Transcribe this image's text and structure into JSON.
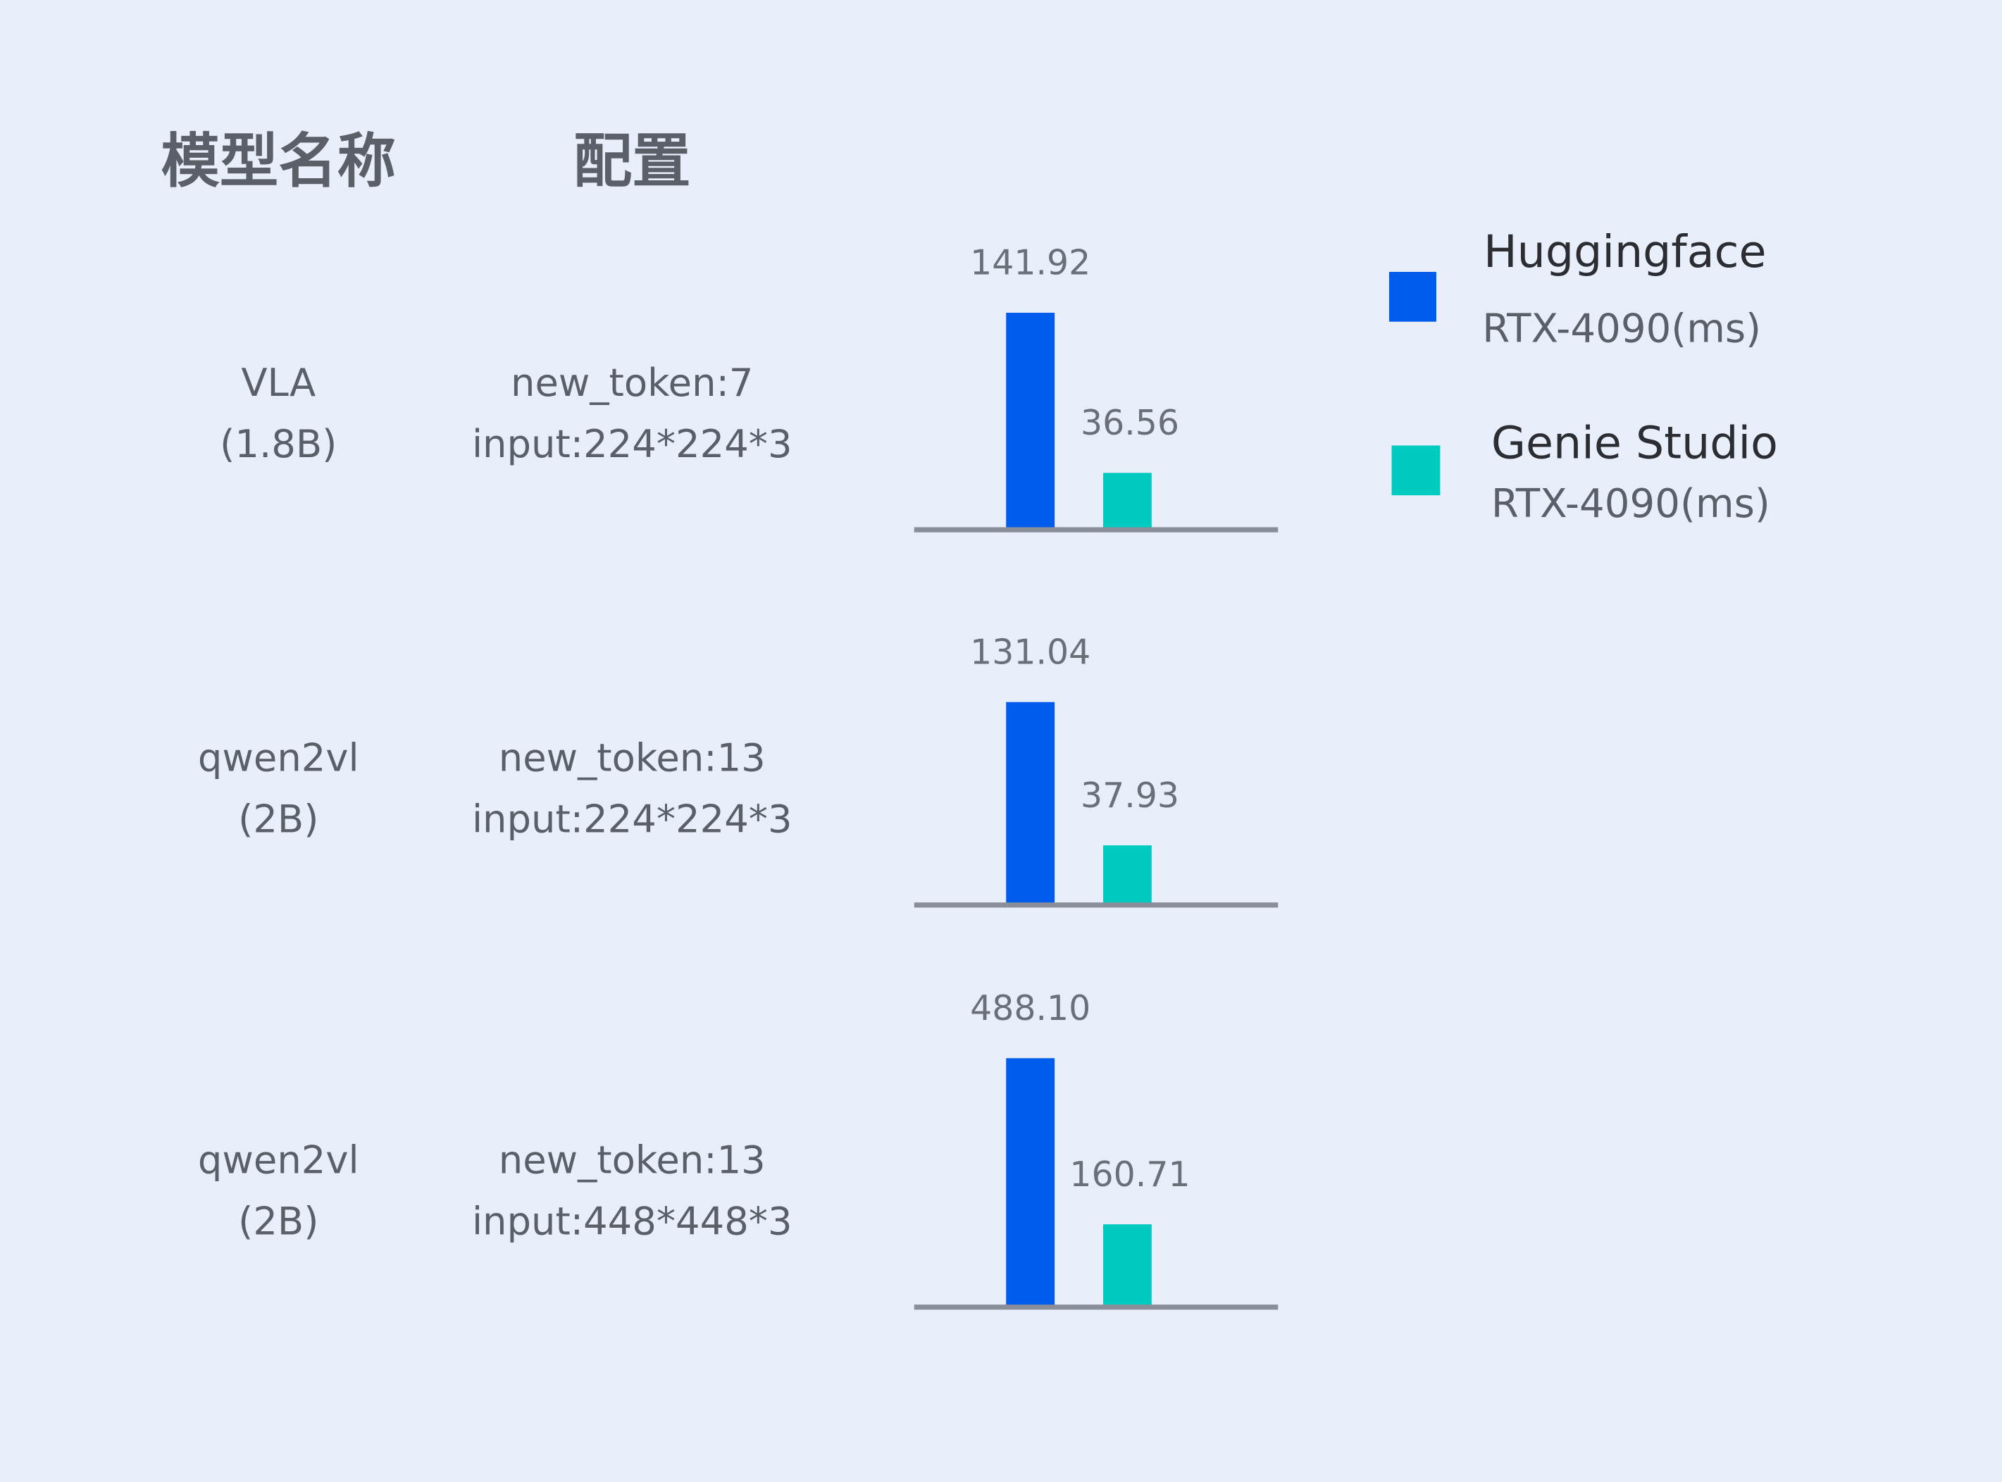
{
  "headers": {
    "model": "模型名称",
    "config": "配置"
  },
  "colors": {
    "huggingface": "#005ced",
    "genie": "#00cbc0",
    "baseline": "#8a8e99",
    "background": "#e8effb"
  },
  "legend": [
    {
      "name": "Huggingface",
      "sub": "RTX-4090(ms)"
    },
    {
      "name": "Genie Studio",
      "sub": "RTX-4090(ms)"
    }
  ],
  "rows": [
    {
      "model": "VLA",
      "size": "(1.8B)",
      "config1": "new_token:7",
      "config2": "input:224*224*3"
    },
    {
      "model": "qwen2vl",
      "size": "(2B)",
      "config1": "new_token:13",
      "config2": "input:224*224*3"
    },
    {
      "model": "qwen2vl",
      "size": "(2B)",
      "config1": "new_token:13",
      "config2": "input:448*448*3"
    }
  ],
  "chart_data": {
    "type": "bar",
    "categories": [
      "VLA (1.8B) new_token:7 input:224*224*3",
      "qwen2vl (2B) new_token:13 input:224*224*3",
      "qwen2vl (2B) new_token:13 input:448*448*3"
    ],
    "series": [
      {
        "name": "Huggingface RTX-4090(ms)",
        "values": [
          141.92,
          131.04,
          488.1
        ],
        "labels": [
          "141.92",
          "131.04",
          "488.10"
        ]
      },
      {
        "name": "Genie Studio RTX-4090(ms)",
        "values": [
          36.56,
          37.93,
          160.71
        ],
        "labels": [
          "36.56",
          "37.93",
          "160.71"
        ]
      }
    ],
    "legend": "right",
    "grid": false
  }
}
